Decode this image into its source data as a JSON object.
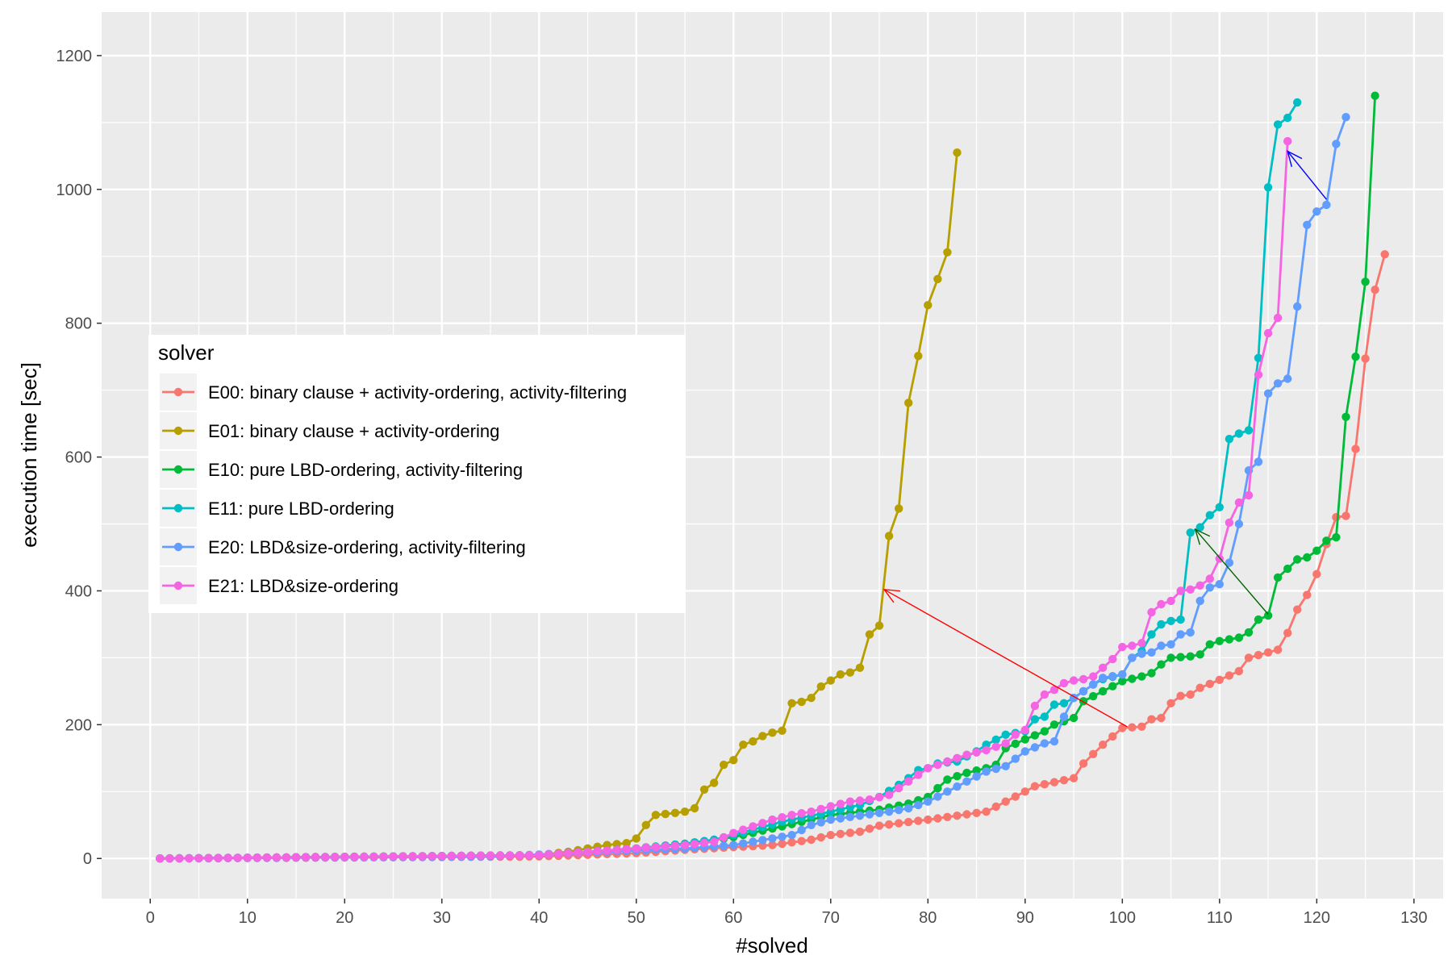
{
  "chart_data": {
    "type": "line",
    "title": "",
    "xlabel": "#solved",
    "ylabel": "execution time [sec]",
    "xlim": [
      -5,
      133
    ],
    "ylim": [
      -60,
      1265
    ],
    "x_ticks": [
      0,
      10,
      20,
      30,
      40,
      50,
      60,
      70,
      80,
      90,
      100,
      110,
      120,
      130
    ],
    "x_tick_labels": [
      "0",
      "10",
      "20",
      "30",
      "40",
      "50",
      "60",
      "70",
      "80",
      "90",
      "100",
      "110",
      "120",
      "130"
    ],
    "y_ticks": [
      0,
      200,
      400,
      600,
      800,
      1000,
      1200
    ],
    "y_tick_labels": [
      "0",
      "200",
      "400",
      "600",
      "800",
      "1000",
      "1200"
    ],
    "grid": true,
    "legend": {
      "title": "solver",
      "placement": "left"
    },
    "series": [
      {
        "name": "E00: binary clause + activity-ordering, activity-filtering",
        "color": "#F8766D",
        "knots": [
          [
            1,
            0
          ],
          [
            40,
            3
          ],
          [
            50,
            8
          ],
          [
            55,
            13
          ],
          [
            60,
            17
          ],
          [
            64,
            20
          ],
          [
            68,
            28
          ],
          [
            70,
            35
          ],
          [
            73,
            40
          ],
          [
            75,
            49
          ],
          [
            80,
            58
          ],
          [
            84,
            66
          ],
          [
            86,
            70
          ],
          [
            90,
            100
          ],
          [
            91,
            108
          ],
          [
            95,
            120
          ],
          [
            96,
            142
          ],
          [
            98,
            170
          ],
          [
            100,
            195
          ],
          [
            102,
            197
          ],
          [
            103,
            208
          ],
          [
            104,
            210
          ],
          [
            105,
            232
          ],
          [
            106,
            243
          ],
          [
            107,
            245
          ],
          [
            108,
            255
          ],
          [
            110,
            267
          ],
          [
            112,
            280
          ],
          [
            113,
            300
          ],
          [
            115,
            308
          ],
          [
            116,
            312
          ],
          [
            117,
            337
          ],
          [
            118,
            372
          ],
          [
            119,
            394
          ],
          [
            120,
            425
          ],
          [
            121,
            470
          ],
          [
            122,
            510
          ],
          [
            123,
            512
          ],
          [
            124,
            612
          ],
          [
            125,
            747
          ],
          [
            126,
            850
          ],
          [
            127,
            903
          ]
        ]
      },
      {
        "name": "E01: binary clause + activity-ordering",
        "color": "#B79F00",
        "knots": [
          [
            1,
            0
          ],
          [
            40,
            5
          ],
          [
            43,
            10
          ],
          [
            45,
            15
          ],
          [
            47,
            20
          ],
          [
            49,
            23
          ],
          [
            50,
            30
          ],
          [
            51,
            50
          ],
          [
            52,
            65
          ],
          [
            54,
            68
          ],
          [
            55,
            70
          ],
          [
            56,
            75
          ],
          [
            57,
            103
          ],
          [
            58,
            113
          ],
          [
            59,
            140
          ],
          [
            60,
            147
          ],
          [
            61,
            170
          ],
          [
            62,
            175
          ],
          [
            63,
            183
          ],
          [
            64,
            188
          ],
          [
            65,
            191
          ],
          [
            66,
            232
          ],
          [
            67,
            234
          ],
          [
            68,
            240
          ],
          [
            69,
            257
          ],
          [
            70,
            266
          ],
          [
            71,
            275
          ],
          [
            72,
            278
          ],
          [
            73,
            285
          ],
          [
            74,
            335
          ],
          [
            75,
            348
          ],
          [
            76,
            482
          ],
          [
            77,
            523
          ],
          [
            78,
            681
          ],
          [
            79,
            751
          ],
          [
            80,
            827
          ],
          [
            81,
            866
          ],
          [
            82,
            906
          ],
          [
            83,
            1055
          ]
        ]
      },
      {
        "name": "E10: pure LBD-ordering, activity-filtering",
        "color": "#00BA38",
        "knots": [
          [
            1,
            0
          ],
          [
            40,
            5
          ],
          [
            45,
            10
          ],
          [
            50,
            15
          ],
          [
            55,
            22
          ],
          [
            58,
            28
          ],
          [
            60,
            32
          ],
          [
            65,
            48
          ],
          [
            70,
            65
          ],
          [
            75,
            73
          ],
          [
            78,
            82
          ],
          [
            80,
            92
          ],
          [
            82,
            118
          ],
          [
            84,
            128
          ],
          [
            86,
            135
          ],
          [
            87,
            140
          ],
          [
            88,
            165
          ],
          [
            90,
            178
          ],
          [
            92,
            190
          ],
          [
            93,
            200
          ],
          [
            94,
            205
          ],
          [
            95,
            210
          ],
          [
            96,
            235
          ],
          [
            98,
            250
          ],
          [
            100,
            265
          ],
          [
            102,
            272
          ],
          [
            103,
            277
          ],
          [
            104,
            290
          ],
          [
            105,
            300
          ],
          [
            107,
            302
          ],
          [
            108,
            305
          ],
          [
            109,
            320
          ],
          [
            110,
            325
          ],
          [
            112,
            330
          ],
          [
            113,
            338
          ],
          [
            114,
            357
          ],
          [
            115,
            363
          ],
          [
            116,
            420
          ],
          [
            117,
            433
          ],
          [
            118,
            447
          ],
          [
            119,
            450
          ],
          [
            120,
            460
          ],
          [
            121,
            475
          ],
          [
            122,
            480
          ],
          [
            123,
            660
          ],
          [
            124,
            750
          ],
          [
            125,
            862
          ],
          [
            126,
            1140
          ]
        ]
      },
      {
        "name": "E11: pure LBD-ordering",
        "color": "#00BFC4",
        "knots": [
          [
            1,
            0
          ],
          [
            40,
            5
          ],
          [
            45,
            10
          ],
          [
            50,
            15
          ],
          [
            55,
            22
          ],
          [
            58,
            28
          ],
          [
            60,
            35
          ],
          [
            65,
            55
          ],
          [
            70,
            70
          ],
          [
            73,
            80
          ],
          [
            75,
            92
          ],
          [
            77,
            110
          ],
          [
            78,
            120
          ],
          [
            79,
            132
          ],
          [
            80,
            135
          ],
          [
            81,
            142
          ],
          [
            83,
            145
          ],
          [
            85,
            160
          ],
          [
            86,
            170
          ],
          [
            88,
            185
          ],
          [
            90,
            190
          ],
          [
            91,
            208
          ],
          [
            92,
            212
          ],
          [
            93,
            230
          ],
          [
            94,
            232
          ],
          [
            95,
            240
          ],
          [
            96,
            250
          ],
          [
            97,
            260
          ],
          [
            98,
            268
          ],
          [
            100,
            275
          ],
          [
            101,
            300
          ],
          [
            102,
            310
          ],
          [
            103,
            335
          ],
          [
            104,
            350
          ],
          [
            105,
            355
          ],
          [
            106,
            357
          ],
          [
            107,
            487
          ],
          [
            108,
            495
          ],
          [
            109,
            513
          ],
          [
            110,
            525
          ],
          [
            111,
            627
          ],
          [
            112,
            635
          ],
          [
            113,
            640
          ],
          [
            114,
            748
          ],
          [
            115,
            1003
          ],
          [
            116,
            1097
          ],
          [
            117,
            1107
          ],
          [
            118,
            1130
          ]
        ]
      },
      {
        "name": "E20: LBD&size-ordering, activity-filtering",
        "color": "#619CFF",
        "knots": [
          [
            1,
            0
          ],
          [
            35,
            3
          ],
          [
            40,
            6
          ],
          [
            45,
            9
          ],
          [
            50,
            12
          ],
          [
            55,
            15
          ],
          [
            60,
            20
          ],
          [
            62,
            25
          ],
          [
            64,
            30
          ],
          [
            66,
            35
          ],
          [
            68,
            50
          ],
          [
            70,
            58
          ],
          [
            72,
            62
          ],
          [
            74,
            66
          ],
          [
            76,
            70
          ],
          [
            78,
            75
          ],
          [
            80,
            85
          ],
          [
            82,
            100
          ],
          [
            84,
            115
          ],
          [
            86,
            130
          ],
          [
            88,
            138
          ],
          [
            90,
            160
          ],
          [
            92,
            172
          ],
          [
            93,
            175
          ],
          [
            94,
            212
          ],
          [
            95,
            240
          ],
          [
            96,
            250
          ],
          [
            98,
            270
          ],
          [
            100,
            275
          ],
          [
            101,
            300
          ],
          [
            102,
            306
          ],
          [
            103,
            308
          ],
          [
            104,
            318
          ],
          [
            105,
            320
          ],
          [
            106,
            335
          ],
          [
            107,
            338
          ],
          [
            108,
            385
          ],
          [
            109,
            405
          ],
          [
            110,
            410
          ],
          [
            111,
            442
          ],
          [
            112,
            500
          ],
          [
            113,
            580
          ],
          [
            114,
            593
          ],
          [
            115,
            695
          ],
          [
            116,
            710
          ],
          [
            117,
            717
          ],
          [
            118,
            825
          ],
          [
            119,
            947
          ],
          [
            120,
            967
          ],
          [
            121,
            977
          ],
          [
            122,
            1068
          ],
          [
            123,
            1108
          ]
        ]
      },
      {
        "name": "E21: LBD&size-ordering",
        "color": "#F564E3",
        "knots": [
          [
            1,
            0
          ],
          [
            40,
            5
          ],
          [
            45,
            10
          ],
          [
            50,
            15
          ],
          [
            55,
            20
          ],
          [
            58,
            25
          ],
          [
            60,
            38
          ],
          [
            62,
            48
          ],
          [
            64,
            58
          ],
          [
            66,
            65
          ],
          [
            68,
            70
          ],
          [
            70,
            78
          ],
          [
            72,
            85
          ],
          [
            74,
            88
          ],
          [
            76,
            95
          ],
          [
            78,
            115
          ],
          [
            80,
            135
          ],
          [
            82,
            145
          ],
          [
            84,
            155
          ],
          [
            86,
            162
          ],
          [
            88,
            172
          ],
          [
            89,
            185
          ],
          [
            90,
            192
          ],
          [
            91,
            228
          ],
          [
            92,
            245
          ],
          [
            93,
            252
          ],
          [
            94,
            262
          ],
          [
            95,
            266
          ],
          [
            96,
            268
          ],
          [
            97,
            272
          ],
          [
            98,
            285
          ],
          [
            99,
            298
          ],
          [
            100,
            316
          ],
          [
            101,
            318
          ],
          [
            102,
            322
          ],
          [
            103,
            368
          ],
          [
            104,
            380
          ],
          [
            105,
            385
          ],
          [
            106,
            400
          ],
          [
            107,
            402
          ],
          [
            108,
            408
          ],
          [
            109,
            418
          ],
          [
            110,
            448
          ],
          [
            111,
            502
          ],
          [
            112,
            532
          ],
          [
            113,
            543
          ],
          [
            114,
            723
          ],
          [
            115,
            785
          ],
          [
            116,
            808
          ],
          [
            117,
            1072
          ]
        ]
      }
    ],
    "annotations": [
      {
        "type": "arrow",
        "from": [
          100.5,
          197
        ],
        "to": [
          75.5,
          402
        ],
        "color": "#FF0000"
      },
      {
        "type": "arrow",
        "from": [
          115,
          365
        ],
        "to": [
          107.5,
          492
        ],
        "color": "#006400"
      },
      {
        "type": "arrow",
        "from": [
          121,
          985
        ],
        "to": [
          117,
          1057
        ],
        "color": "#0000FF"
      }
    ]
  }
}
